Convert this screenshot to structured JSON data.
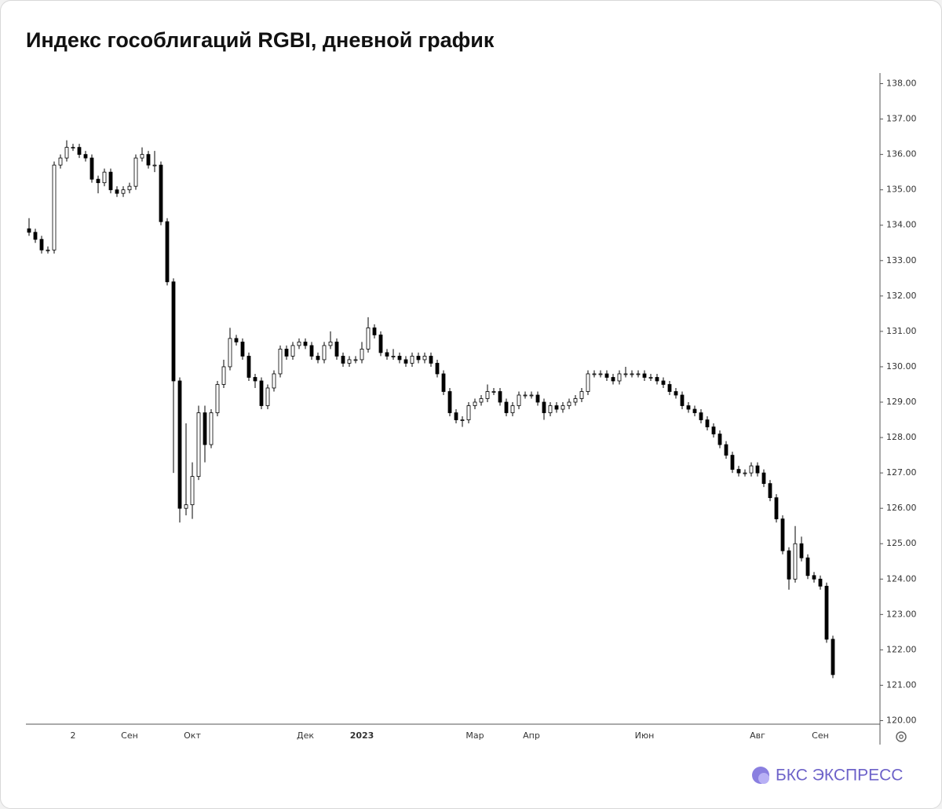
{
  "chart_data": {
    "type": "candlestick",
    "title": "Индекс гособлигаций RGBI, дневной график",
    "categories": [
      null,
      null,
      null,
      null,
      null,
      null,
      null,
      "2",
      null,
      null,
      null,
      null,
      null,
      null,
      null,
      null,
      "Сен",
      null,
      null,
      null,
      null,
      null,
      null,
      null,
      null,
      null,
      "Окт",
      null,
      null,
      null,
      null,
      null,
      null,
      null,
      null,
      null,
      null,
      null,
      null,
      null,
      null,
      null,
      null,
      null,
      "Дек",
      null,
      null,
      null,
      null,
      null,
      null,
      null,
      null,
      "2023",
      null,
      null,
      null,
      null,
      null,
      null,
      null,
      null,
      null,
      null,
      null,
      null,
      null,
      null,
      null,
      null,
      null,
      "Мар",
      null,
      null,
      null,
      null,
      null,
      null,
      null,
      null,
      "Апр",
      null,
      null,
      null,
      null,
      null,
      null,
      null,
      null,
      null,
      null,
      null,
      null,
      null,
      null,
      null,
      null,
      null,
      "Июн",
      null,
      null,
      null,
      null,
      null,
      null,
      null,
      null,
      null,
      null,
      null,
      null,
      null,
      null,
      null,
      null,
      null,
      "Авг",
      null,
      null,
      null,
      null,
      null,
      null,
      null,
      null,
      null,
      "Сен",
      null,
      null
    ],
    "open": [
      133.9,
      133.8,
      133.6,
      133.3,
      133.3,
      135.7,
      135.9,
      136.2,
      136.2,
      136.0,
      135.9,
      135.3,
      135.2,
      135.5,
      135.0,
      134.9,
      135.0,
      135.1,
      135.9,
      136.0,
      135.7,
      135.7,
      134.1,
      132.4,
      129.6,
      126.0,
      126.1,
      126.9,
      128.7,
      127.8,
      128.7,
      129.5,
      130.0,
      130.8,
      130.7,
      130.3,
      129.7,
      129.6,
      128.9,
      129.4,
      129.8,
      130.5,
      130.3,
      130.6,
      130.7,
      130.6,
      130.3,
      130.2,
      130.6,
      130.7,
      130.3,
      130.1,
      130.2,
      130.2,
      130.5,
      131.1,
      130.9,
      130.4,
      130.3,
      130.3,
      130.2,
      130.1,
      130.3,
      130.2,
      130.3,
      130.1,
      129.8,
      129.3,
      128.7,
      128.5,
      128.5,
      128.9,
      129.0,
      129.1,
      129.3,
      129.3,
      129.0,
      128.7,
      128.9,
      129.2,
      129.2,
      129.2,
      129.0,
      128.7,
      128.9,
      128.8,
      128.9,
      129.0,
      129.1,
      129.3,
      129.8,
      129.8,
      129.8,
      129.7,
      129.6,
      129.8,
      129.8,
      129.8,
      129.8,
      129.7,
      129.7,
      129.6,
      129.5,
      129.3,
      129.2,
      128.9,
      128.8,
      128.7,
      128.5,
      128.3,
      128.1,
      127.8,
      127.5,
      127.1,
      127.0,
      127.0,
      127.2,
      127.0,
      126.7,
      126.3,
      125.7,
      124.8,
      124.0,
      125.0,
      124.6,
      124.1,
      124.0,
      123.8,
      122.3
    ],
    "high": [
      134.2,
      133.9,
      133.7,
      133.4,
      135.8,
      136.0,
      136.4,
      136.3,
      136.3,
      136.1,
      136.0,
      135.4,
      135.6,
      135.6,
      135.1,
      135.1,
      135.2,
      136.0,
      136.2,
      136.1,
      136.1,
      135.8,
      134.2,
      132.5,
      129.7,
      128.4,
      127.3,
      128.9,
      128.9,
      128.8,
      129.6,
      130.2,
      131.1,
      130.9,
      130.8,
      130.4,
      129.8,
      129.7,
      129.5,
      129.9,
      130.6,
      130.6,
      130.7,
      130.8,
      130.8,
      130.7,
      130.4,
      130.7,
      131.0,
      130.8,
      130.4,
      130.3,
      130.3,
      130.7,
      131.4,
      131.2,
      131.0,
      130.5,
      130.5,
      130.4,
      130.3,
      130.4,
      130.4,
      130.4,
      130.4,
      130.2,
      129.9,
      129.4,
      128.8,
      128.6,
      129.0,
      129.1,
      129.2,
      129.5,
      129.4,
      129.4,
      129.1,
      129.0,
      129.3,
      129.3,
      129.3,
      129.3,
      129.1,
      129.0,
      129.0,
      129.0,
      129.1,
      129.2,
      129.4,
      129.9,
      129.9,
      129.9,
      129.9,
      129.8,
      129.9,
      130.0,
      129.9,
      129.9,
      129.9,
      129.8,
      129.8,
      129.7,
      129.6,
      129.4,
      129.3,
      129.0,
      128.9,
      128.8,
      128.6,
      128.4,
      128.2,
      127.9,
      127.6,
      127.2,
      127.1,
      127.3,
      127.3,
      127.1,
      126.8,
      126.4,
      125.8,
      124.9,
      125.5,
      125.2,
      124.7,
      124.2,
      124.1,
      123.9,
      122.4
    ],
    "low": [
      133.7,
      133.5,
      133.2,
      133.2,
      133.2,
      135.6,
      135.8,
      136.1,
      135.9,
      135.8,
      135.2,
      134.9,
      135.1,
      134.9,
      134.8,
      134.8,
      134.9,
      135.0,
      135.8,
      135.6,
      135.5,
      134.0,
      132.3,
      127.0,
      125.6,
      125.8,
      125.7,
      126.8,
      127.3,
      127.7,
      128.6,
      129.4,
      129.9,
      130.6,
      130.2,
      129.6,
      129.4,
      128.8,
      128.8,
      129.3,
      129.7,
      130.2,
      130.2,
      130.5,
      130.5,
      130.2,
      130.1,
      130.1,
      130.5,
      130.2,
      130.0,
      130.0,
      130.1,
      130.1,
      130.4,
      130.8,
      130.3,
      130.2,
      130.2,
      130.1,
      130.0,
      130.0,
      130.1,
      130.1,
      130.0,
      129.7,
      129.2,
      128.6,
      128.4,
      128.3,
      128.4,
      128.8,
      128.9,
      129.0,
      129.2,
      128.9,
      128.6,
      128.6,
      128.8,
      129.1,
      129.1,
      128.9,
      128.5,
      128.6,
      128.7,
      128.7,
      128.8,
      128.9,
      129.0,
      129.2,
      129.7,
      129.7,
      129.6,
      129.5,
      129.5,
      129.7,
      129.7,
      129.7,
      129.6,
      129.6,
      129.5,
      129.4,
      129.2,
      129.1,
      128.8,
      128.7,
      128.6,
      128.4,
      128.2,
      128.0,
      127.7,
      127.4,
      127.0,
      126.9,
      126.9,
      126.9,
      126.9,
      126.6,
      126.2,
      125.6,
      124.7,
      123.7,
      123.9,
      124.5,
      124.0,
      123.9,
      123.7,
      122.2,
      121.2
    ],
    "close": [
      133.8,
      133.6,
      133.3,
      133.3,
      135.7,
      135.9,
      136.2,
      136.2,
      136.0,
      135.9,
      135.3,
      135.2,
      135.5,
      135.0,
      134.9,
      135.0,
      135.1,
      135.9,
      136.0,
      135.7,
      135.7,
      134.1,
      132.4,
      129.6,
      126.0,
      126.1,
      126.9,
      128.7,
      127.8,
      128.7,
      129.5,
      130.0,
      130.8,
      130.7,
      130.3,
      129.7,
      129.6,
      128.9,
      129.4,
      129.8,
      130.5,
      130.3,
      130.6,
      130.7,
      130.6,
      130.3,
      130.2,
      130.6,
      130.7,
      130.3,
      130.1,
      130.2,
      130.2,
      130.5,
      131.1,
      130.9,
      130.4,
      130.3,
      130.3,
      130.2,
      130.1,
      130.3,
      130.2,
      130.3,
      130.1,
      129.8,
      129.3,
      128.7,
      128.5,
      128.5,
      128.9,
      129.0,
      129.1,
      129.3,
      129.3,
      129.0,
      128.7,
      128.9,
      129.2,
      129.2,
      129.2,
      129.0,
      128.7,
      128.9,
      128.8,
      128.9,
      129.0,
      129.1,
      129.3,
      129.8,
      129.8,
      129.8,
      129.7,
      129.6,
      129.8,
      129.8,
      129.8,
      129.8,
      129.7,
      129.7,
      129.6,
      129.5,
      129.3,
      129.2,
      128.9,
      128.8,
      128.7,
      128.5,
      128.3,
      128.1,
      127.8,
      127.5,
      127.1,
      127.0,
      127.0,
      127.2,
      127.0,
      126.7,
      126.3,
      125.7,
      124.8,
      124.0,
      125.0,
      124.6,
      124.1,
      124.0,
      123.8,
      122.3,
      121.3
    ],
    "up_color": "#ffffff",
    "down_color": "#000000",
    "edge_color": "#000000",
    "ylim": [
      119.9,
      138.3
    ],
    "yticks": [
      {
        "value": 120,
        "label": "120.00"
      },
      {
        "value": 121,
        "label": "121.00"
      },
      {
        "value": 122,
        "label": "122.00"
      },
      {
        "value": 123,
        "label": "123.00"
      },
      {
        "value": 124,
        "label": "124.00"
      },
      {
        "value": 125,
        "label": "125.00"
      },
      {
        "value": 126,
        "label": "126.00"
      },
      {
        "value": 127,
        "label": "127.00"
      },
      {
        "value": 128,
        "label": "128.00"
      },
      {
        "value": 129,
        "label": "129.00"
      },
      {
        "value": 130,
        "label": "130.00"
      },
      {
        "value": 131,
        "label": "131.00"
      },
      {
        "value": 132,
        "label": "132.00"
      },
      {
        "value": 133,
        "label": "133.00"
      },
      {
        "value": 134,
        "label": "134.00"
      },
      {
        "value": 135,
        "label": "135.00"
      },
      {
        "value": 136,
        "label": "136.00"
      },
      {
        "value": 137,
        "label": "137.00"
      },
      {
        "value": 138,
        "label": "138.00"
      }
    ],
    "grid": false
  },
  "logo": "БКС ЭКСПРЕСС"
}
